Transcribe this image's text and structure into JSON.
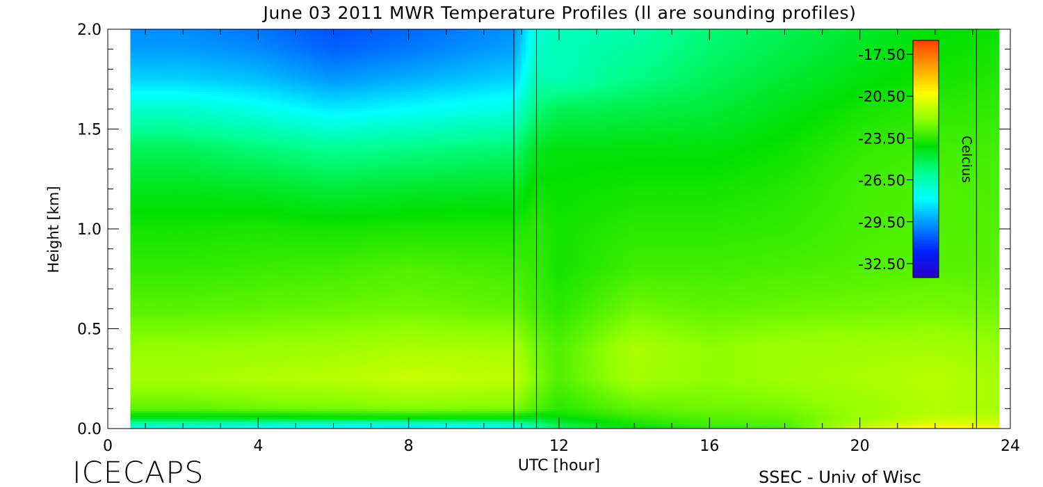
{
  "chart_data": {
    "type": "heatmap",
    "title": "June 03 2011 MWR Temperature Profiles (ll are sounding profiles)",
    "xlabel": "UTC [hour]",
    "ylabel": "Height [km]",
    "xlim": [
      0,
      24
    ],
    "ylim": [
      0,
      2
    ],
    "x_ticks": [
      0,
      4,
      8,
      12,
      16,
      20,
      24
    ],
    "x_tick_labels": [
      "0",
      "4",
      "8",
      "12",
      "16",
      "20",
      "24"
    ],
    "y_ticks": [
      0,
      0.5,
      1,
      1.5,
      2
    ],
    "y_tick_labels": [
      "0.0",
      "0.5",
      "1.0",
      "1.5",
      "2.0"
    ],
    "data_x_range": [
      0.6,
      23.7
    ],
    "missing_gap_hours": [
      10.8,
      11.4
    ],
    "sounding_profile_times": [
      10.8,
      11.4,
      23.1
    ],
    "colorbar": {
      "label": "Celcius",
      "ticks": [
        -17.5,
        -20.5,
        -23.5,
        -26.5,
        -29.5,
        -32.5
      ],
      "tick_labels": [
        "-17.50",
        "-20.50",
        "-23.50",
        "-26.50",
        "-29.50",
        "-32.50"
      ],
      "range": [
        -33.5,
        -16.5
      ],
      "colormap": [
        "#2a00c8",
        "#0020ff",
        "#0090ff",
        "#00ffff",
        "#00ff90",
        "#00e000",
        "#90ff00",
        "#ffff00",
        "#ffa000",
        "#ff4000"
      ]
    },
    "temperature_profiles": {
      "heights_km": [
        0.0,
        0.02,
        0.05,
        0.1,
        0.25,
        0.4,
        0.6,
        0.8,
        1.0,
        1.2,
        1.4,
        1.6,
        1.75,
        1.9,
        2.0
      ],
      "times_hour": [
        0.6,
        2,
        4,
        6,
        8,
        10.8,
        11.4,
        12,
        14,
        16,
        18,
        20,
        22,
        23.7
      ],
      "celsius": [
        [
          -27.5,
          -26.5,
          -24.5,
          -22.8,
          -21.8,
          -22.1,
          -22.9,
          -23.4,
          -23.8,
          -24.4,
          -25.2,
          -27.0,
          -28.6,
          -29.5,
          -29.8
        ],
        [
          -27.5,
          -26.5,
          -24.5,
          -22.8,
          -21.8,
          -22.1,
          -22.9,
          -23.4,
          -23.8,
          -24.4,
          -25.2,
          -27.0,
          -28.6,
          -29.5,
          -29.8
        ],
        [
          -28.0,
          -26.8,
          -24.5,
          -22.6,
          -21.6,
          -22.0,
          -22.8,
          -23.3,
          -23.7,
          -24.5,
          -25.6,
          -27.5,
          -28.9,
          -29.8,
          -30.2
        ],
        [
          -28.5,
          -27.0,
          -24.3,
          -22.5,
          -21.5,
          -21.9,
          -22.7,
          -23.2,
          -23.8,
          -24.8,
          -26.0,
          -28.2,
          -29.6,
          -30.5,
          -30.8
        ],
        [
          -28.8,
          -27.2,
          -24.2,
          -22.3,
          -21.2,
          -21.7,
          -22.6,
          -23.0,
          -23.7,
          -24.6,
          -25.8,
          -27.8,
          -29.2,
          -30.1,
          -30.4
        ],
        [
          -28.0,
          -26.8,
          -24.2,
          -22.4,
          -21.4,
          -21.8,
          -22.8,
          -23.2,
          -23.7,
          -24.5,
          -25.5,
          -27.3,
          -28.6,
          -29.4,
          -29.7
        ],
        [
          -26.6,
          -25.8,
          -24.5,
          -23.0,
          -22.4,
          -22.6,
          -23.2,
          -23.4,
          -23.5,
          -23.9,
          -24.5,
          -25.6,
          -26.5,
          -27.0,
          -27.2
        ],
        [
          -25.5,
          -25.0,
          -24.2,
          -23.5,
          -23.0,
          -23.0,
          -23.5,
          -23.8,
          -23.8,
          -24.0,
          -24.2,
          -25.2,
          -26.6,
          -26.6,
          -26.7
        ],
        [
          -24.2,
          -23.8,
          -23.4,
          -22.8,
          -21.8,
          -21.7,
          -22.6,
          -23.2,
          -23.5,
          -23.8,
          -24.2,
          -25.0,
          -25.8,
          -26.2,
          -26.4
        ],
        [
          -23.5,
          -23.2,
          -23.0,
          -22.6,
          -22.2,
          -22.2,
          -22.8,
          -23.2,
          -23.5,
          -23.8,
          -24.2,
          -24.8,
          -25.2,
          -25.5,
          -25.6
        ],
        [
          -23.2,
          -23.0,
          -22.8,
          -22.5,
          -21.9,
          -21.9,
          -22.7,
          -23.1,
          -23.4,
          -23.6,
          -23.9,
          -24.3,
          -24.7,
          -25.0,
          -25.1
        ],
        [
          -21.0,
          -21.6,
          -22.0,
          -22.0,
          -21.7,
          -21.9,
          -22.6,
          -23.0,
          -23.1,
          -23.2,
          -23.4,
          -23.8,
          -24.2,
          -24.5,
          -24.6
        ],
        [
          -19.8,
          -20.6,
          -21.3,
          -21.6,
          -21.5,
          -21.8,
          -22.5,
          -22.9,
          -23.0,
          -23.0,
          -23.2,
          -23.5,
          -23.8,
          -24.0,
          -24.1
        ],
        [
          -20.3,
          -20.9,
          -21.4,
          -21.8,
          -21.8,
          -22.1,
          -22.6,
          -22.9,
          -23.0,
          -23.1,
          -23.2,
          -23.4,
          -23.6,
          -23.8,
          -23.9
        ]
      ]
    }
  },
  "footer": {
    "logo_text": "ICECAPS",
    "credit": "SSEC - Univ of Wisc"
  }
}
